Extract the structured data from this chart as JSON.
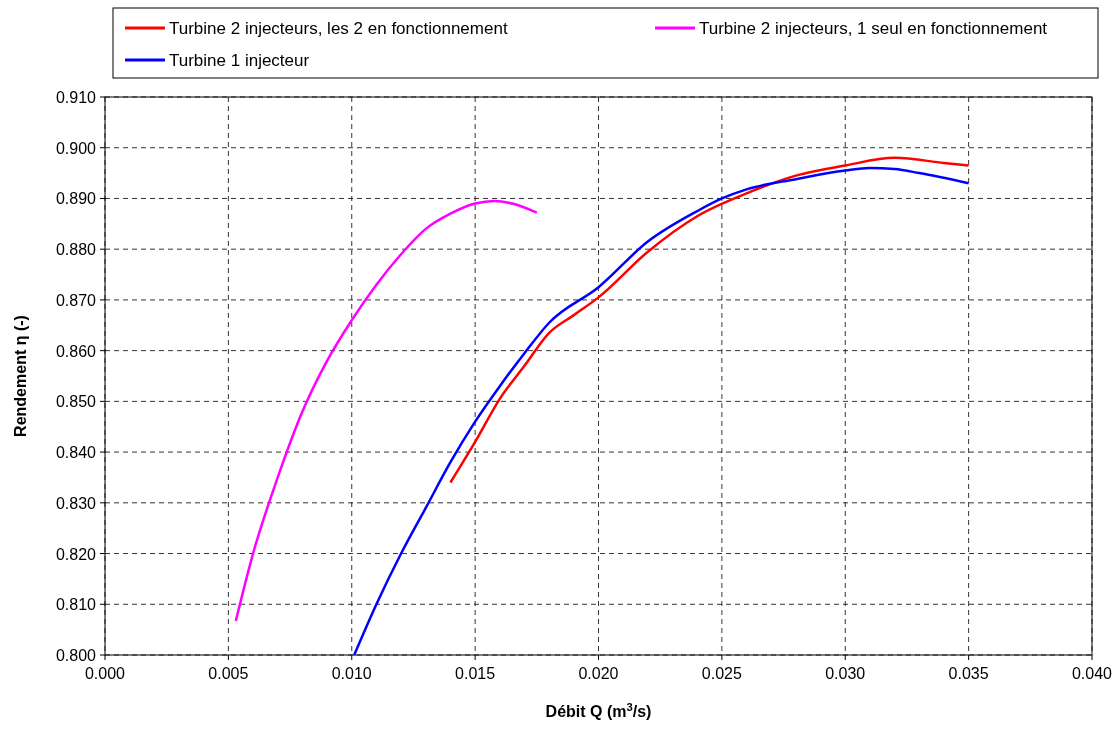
{
  "chart_data": {
    "type": "line",
    "xlabel": "Débit Q (m$^{3}$/s)",
    "ylabel": "Rendement η (-)",
    "xlim": [
      0,
      0.04
    ],
    "ylim": [
      0.8,
      0.91
    ],
    "xticks": [
      {
        "value": 0,
        "label": "0.000"
      },
      {
        "value": 0.005,
        "label": "0.005"
      },
      {
        "value": 0.01,
        "label": "0.010"
      },
      {
        "value": 0.015,
        "label": "0.015"
      },
      {
        "value": 0.02,
        "label": "0.020"
      },
      {
        "value": 0.025,
        "label": "0.025"
      },
      {
        "value": 0.03,
        "label": "0.030"
      },
      {
        "value": 0.035,
        "label": "0.035"
      },
      {
        "value": 0.04,
        "label": "0.040"
      }
    ],
    "yticks": [
      {
        "value": 0.8,
        "label": "0.800"
      },
      {
        "value": 0.81,
        "label": "0.810"
      },
      {
        "value": 0.82,
        "label": "0.820"
      },
      {
        "value": 0.83,
        "label": "0.830"
      },
      {
        "value": 0.84,
        "label": "0.840"
      },
      {
        "value": 0.85,
        "label": "0.850"
      },
      {
        "value": 0.86,
        "label": "0.860"
      },
      {
        "value": 0.87,
        "label": "0.870"
      },
      {
        "value": 0.88,
        "label": "0.880"
      },
      {
        "value": 0.89,
        "label": "0.890"
      },
      {
        "value": 0.9,
        "label": "0.900"
      },
      {
        "value": 0.91,
        "label": "0.910"
      }
    ],
    "grid": true,
    "legend": "top",
    "line_style": "solid",
    "marker": "none",
    "series": [
      {
        "name": "Turbine 2 injecteurs, les 2 en fonctionnement",
        "color": "#ff0000",
        "x": [
          0.014,
          0.015,
          0.016,
          0.017,
          0.018,
          0.019,
          0.02,
          0.022,
          0.024,
          0.026,
          0.028,
          0.03,
          0.032,
          0.034,
          0.035
        ],
        "values": [
          0.834,
          0.842,
          0.8505,
          0.857,
          0.8635,
          0.867,
          0.8705,
          0.8795,
          0.8865,
          0.891,
          0.8945,
          0.8965,
          0.898,
          0.897,
          0.8965
        ]
      },
      {
        "name": "Turbine 2 injecteurs, 1 seul en fonctionnement",
        "color": "#ff00ff",
        "x": [
          0.0053,
          0.006,
          0.007,
          0.008,
          0.009,
          0.01,
          0.011,
          0.012,
          0.013,
          0.014,
          0.015,
          0.0158,
          0.0165,
          0.0175
        ],
        "values": [
          0.8067,
          0.82,
          0.835,
          0.848,
          0.858,
          0.866,
          0.873,
          0.879,
          0.884,
          0.887,
          0.889,
          0.8895,
          0.889,
          0.8872
        ]
      },
      {
        "name": "Turbine 1 injecteur",
        "color": "#0000ff",
        "x": [
          0.0101,
          0.011,
          0.012,
          0.013,
          0.014,
          0.015,
          0.016,
          0.017,
          0.018,
          0.02,
          0.022,
          0.024,
          0.025,
          0.026,
          0.028,
          0.03,
          0.031,
          0.032,
          0.033,
          0.035
        ],
        "values": [
          0.8,
          0.81,
          0.82,
          0.829,
          0.838,
          0.846,
          0.853,
          0.8595,
          0.8655,
          0.8725,
          0.8815,
          0.8875,
          0.89,
          0.8918,
          0.8938,
          0.8955,
          0.896,
          0.8958,
          0.895,
          0.893
        ]
      }
    ]
  }
}
